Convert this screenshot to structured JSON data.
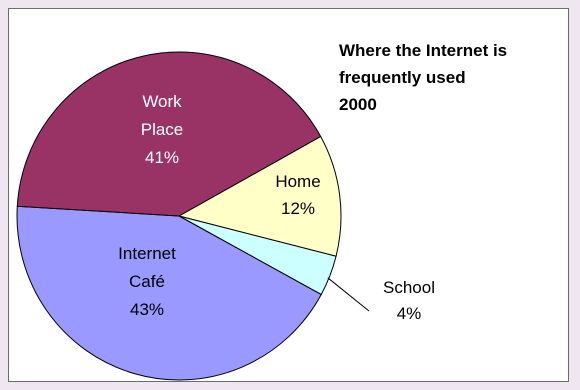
{
  "chart_data": {
    "type": "pie",
    "title_lines": [
      "Where the Internet is",
      "frequently used",
      "2000"
    ],
    "slices": [
      {
        "label_lines": [
          "Home",
          "12%"
        ],
        "value": 12,
        "color": "#ffffc8",
        "label_color": "#000000"
      },
      {
        "label_lines": [
          "School",
          "4%"
        ],
        "value": 4,
        "color": "#ccffff",
        "label_color": "#000000"
      },
      {
        "label_lines": [
          "Internet",
          "Café",
          "43%"
        ],
        "value": 43,
        "color": "#9999ff",
        "label_color": "#000000"
      },
      {
        "label_lines": [
          "Work",
          "Place",
          "41%"
        ],
        "value": 41,
        "color": "#993366",
        "label_color": "#ffffff"
      }
    ],
    "start_angle_deg": 61,
    "direction": "clockwise"
  }
}
